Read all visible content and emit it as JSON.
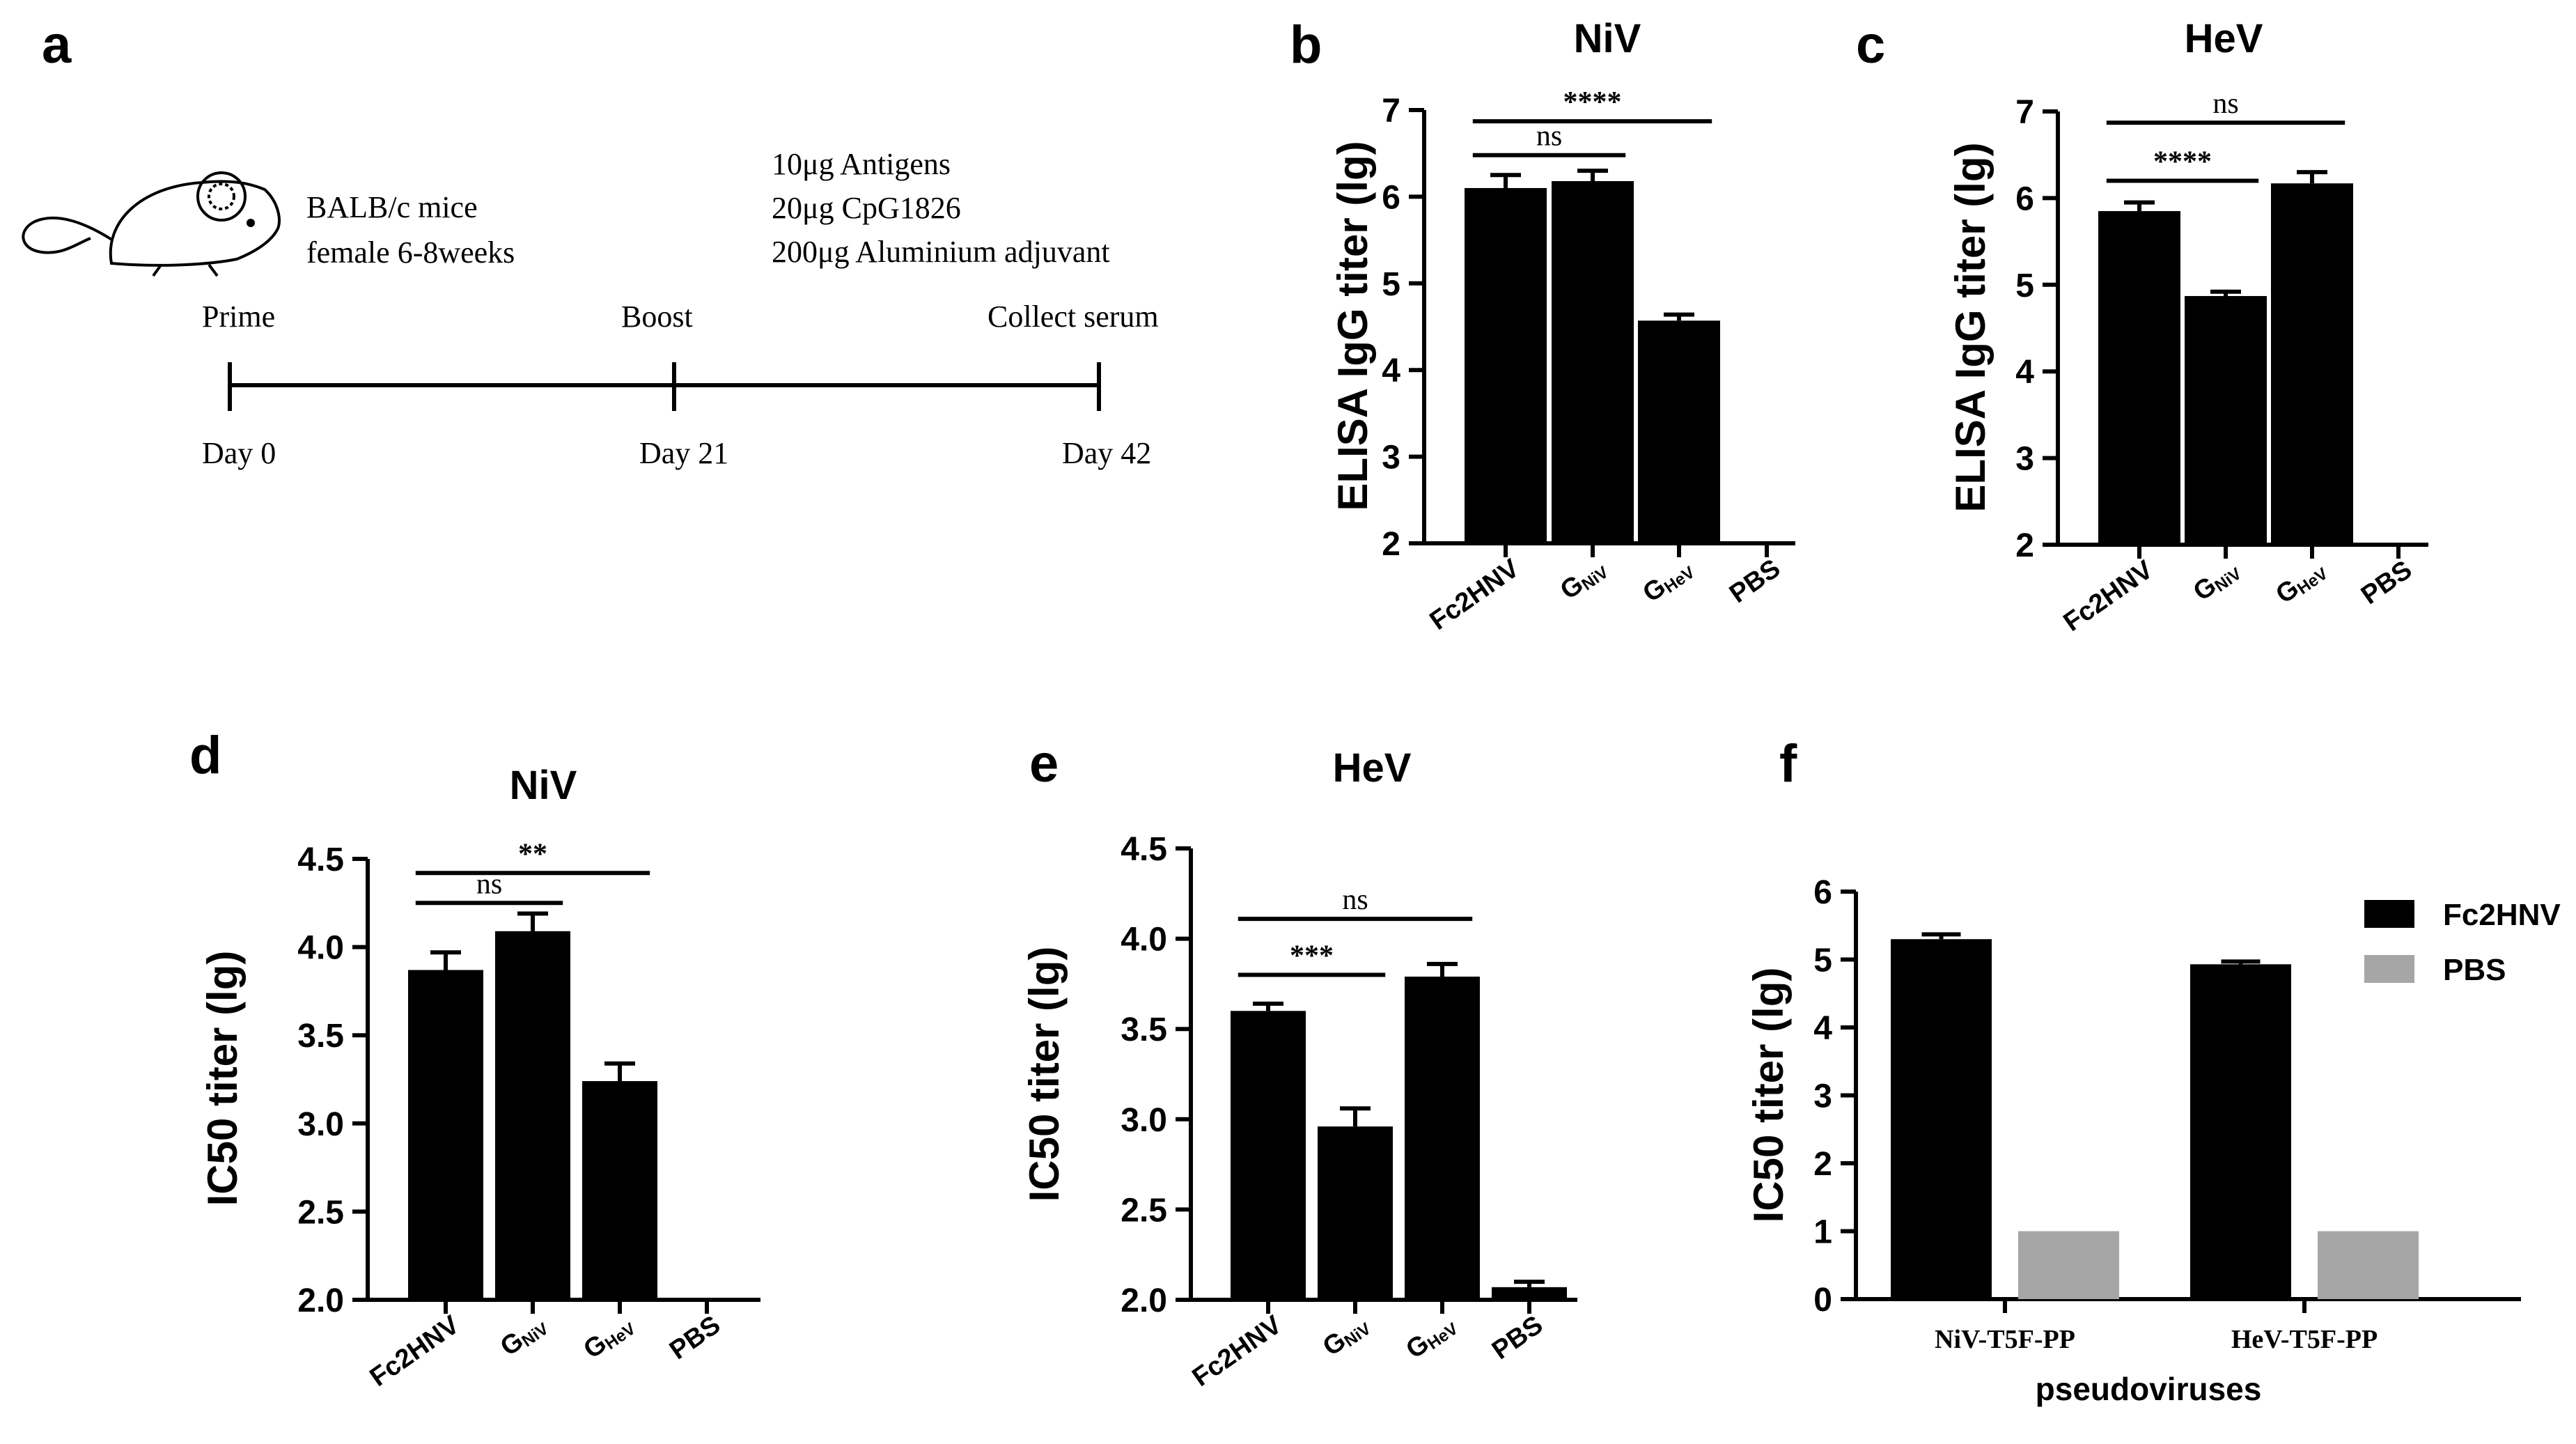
{
  "panels": {
    "a": {
      "letter": "a",
      "mouse": {
        "strain": "BALB/c mice",
        "details": "female 6-8weeks"
      },
      "dose": [
        "10μg Antigens",
        "20μg CpG1826",
        "200μg Aluminium adjuvant"
      ],
      "timeline": {
        "events": [
          {
            "label": "Prime",
            "day": "Day 0"
          },
          {
            "label": "Boost",
            "day": "Day 21"
          },
          {
            "label": "Collect serum",
            "day": "Day 42"
          }
        ]
      }
    }
  },
  "chart_data": [
    {
      "id": "b",
      "letter": "b",
      "type": "bar",
      "title": "NiV",
      "ylabel": "ELISA IgG titer (lg)",
      "xlabel": "",
      "ylim": [
        2,
        7
      ],
      "yticks": [
        "2",
        "3",
        "4",
        "5",
        "6",
        "7"
      ],
      "categories": [
        {
          "main": "Fc2HNV",
          "sub": ""
        },
        {
          "main": "G",
          "sub": "NiV"
        },
        {
          "main": "G",
          "sub": "HeV"
        },
        {
          "main": "PBS",
          "sub": ""
        }
      ],
      "values": [
        6.1,
        6.18,
        4.57,
        null
      ],
      "errors": [
        0.15,
        0.12,
        0.07,
        0
      ],
      "significance": [
        {
          "from": 0,
          "to": 1,
          "label": "ns",
          "level": 6.48
        },
        {
          "from": 0,
          "to": 2,
          "label": "****",
          "level": 6.87
        }
      ]
    },
    {
      "id": "c",
      "letter": "c",
      "type": "bar",
      "title": "HeV",
      "ylabel": "ELISA IgG titer (lg)",
      "xlabel": "",
      "ylim": [
        2,
        7
      ],
      "yticks": [
        "2",
        "3",
        "4",
        "5",
        "6",
        "7"
      ],
      "categories": [
        {
          "main": "Fc2HNV",
          "sub": ""
        },
        {
          "main": "G",
          "sub": "NiV"
        },
        {
          "main": "G",
          "sub": "HeV"
        },
        {
          "main": "PBS",
          "sub": ""
        }
      ],
      "values": [
        5.85,
        4.87,
        6.17,
        null
      ],
      "errors": [
        0.1,
        0.05,
        0.13,
        0
      ],
      "significance": [
        {
          "from": 0,
          "to": 1,
          "label": "****",
          "level": 6.2
        },
        {
          "from": 0,
          "to": 2,
          "label": "ns",
          "level": 6.87
        }
      ]
    },
    {
      "id": "d",
      "letter": "d",
      "type": "bar",
      "title": "NiV",
      "ylabel": "IC50 titer (lg)",
      "xlabel": "",
      "ylim": [
        2,
        4.5
      ],
      "yticks": [
        "2.0",
        "2.5",
        "3.0",
        "3.5",
        "4.0",
        "4.5"
      ],
      "categories": [
        {
          "main": "Fc2HNV",
          "sub": ""
        },
        {
          "main": "G",
          "sub": "NiV"
        },
        {
          "main": "G",
          "sub": "HeV"
        },
        {
          "main": "PBS",
          "sub": ""
        }
      ],
      "values": [
        3.87,
        4.09,
        3.24,
        null
      ],
      "errors": [
        0.1,
        0.1,
        0.1,
        0
      ],
      "significance": [
        {
          "from": 0,
          "to": 1,
          "label": "ns",
          "level": 4.25
        },
        {
          "from": 0,
          "to": 2,
          "label": "**",
          "level": 4.42
        }
      ]
    },
    {
      "id": "e",
      "letter": "e",
      "type": "bar",
      "title": "HeV",
      "ylabel": "IC50 titer (lg)",
      "xlabel": "",
      "ylim": [
        2,
        4.5
      ],
      "yticks": [
        "2.0",
        "2.5",
        "3.0",
        "3.5",
        "4.0",
        "4.5"
      ],
      "categories": [
        {
          "main": "Fc2HNV",
          "sub": ""
        },
        {
          "main": "G",
          "sub": "NiV"
        },
        {
          "main": "G",
          "sub": "HeV"
        },
        {
          "main": "PBS",
          "sub": ""
        }
      ],
      "values": [
        3.6,
        2.96,
        3.79,
        2.07
      ],
      "errors": [
        0.04,
        0.1,
        0.07,
        0.03
      ],
      "significance": [
        {
          "from": 0,
          "to": 1,
          "label": "***",
          "level": 3.8
        },
        {
          "from": 0,
          "to": 2,
          "label": "ns",
          "level": 4.11
        }
      ]
    },
    {
      "id": "f",
      "letter": "f",
      "type": "bar",
      "title": "",
      "ylabel": "IC50 titer (lg)",
      "xlabel": "pseudoviruses",
      "ylim": [
        0,
        6
      ],
      "yticks": [
        "0",
        "1",
        "2",
        "3",
        "4",
        "5",
        "6"
      ],
      "categories": [
        "NiV-T5F-PP",
        "HeV-T5F-PP"
      ],
      "series": [
        {
          "name": "Fc2HNV",
          "color": "#000000",
          "values": [
            5.3,
            4.93
          ],
          "errors": [
            0.07,
            0.04
          ]
        },
        {
          "name": "PBS",
          "color": "#a6a6a6",
          "values": [
            1.0,
            1.0
          ],
          "errors": [
            0,
            0
          ]
        }
      ],
      "legend": "top-right"
    }
  ]
}
